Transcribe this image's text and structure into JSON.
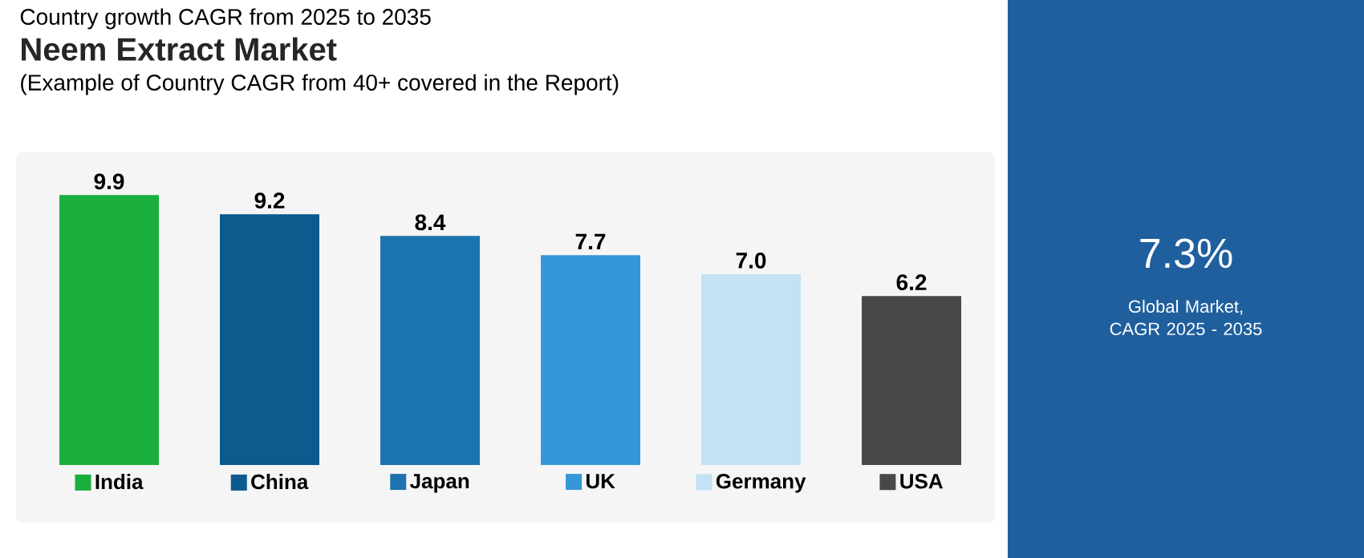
{
  "chart_data": {
    "type": "bar",
    "title": "Neem Extract Market",
    "subtitle": "(Example of Country CAGR from 40+ covered in the Report)",
    "categories": [
      "India",
      "China",
      "Japan",
      "UK",
      "Germany",
      "USA"
    ],
    "values": [
      9.9,
      9.2,
      8.4,
      7.7,
      7.0,
      6.2
    ],
    "value_labels": [
      "9.9",
      "9.2",
      "8.4",
      "7.7",
      "7.0",
      "6.2"
    ],
    "colors": [
      "#1aae3c",
      "#0d5a8e",
      "#1c74ae",
      "#3498d8",
      "#c3e2f3",
      "#484848"
    ],
    "annotations": [
      "Country growth CAGR from 2025 to 2035",
      "7.3%",
      "Global Market, CAGR 2025 - 2035"
    ]
  }
}
